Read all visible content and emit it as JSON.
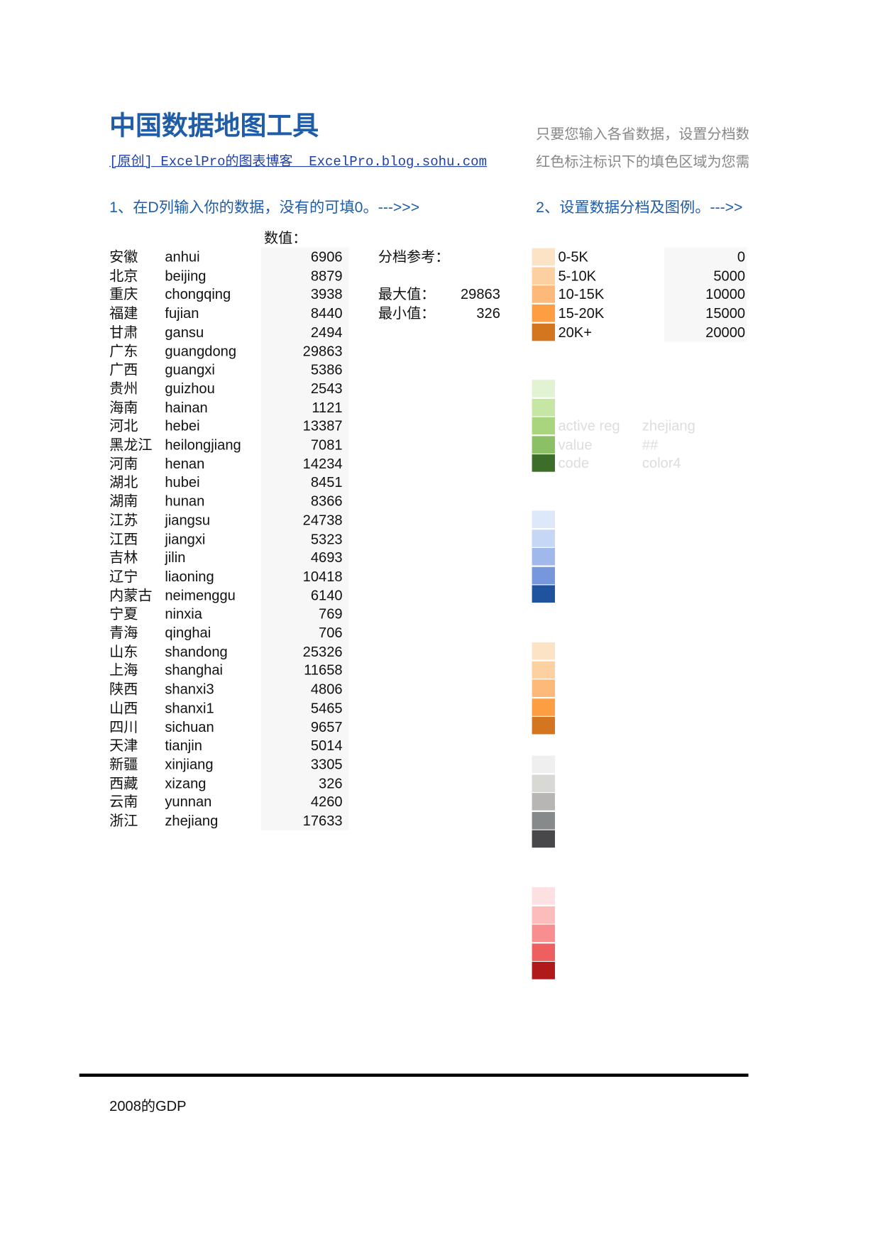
{
  "header": {
    "title": "中国数据地图工具",
    "link": "[原创] ExcelPro的图表博客  ExcelPro.blog.sohu.com",
    "notes": [
      "只要您输入各省数据，设置分档数",
      "红色标注标识下的填色区域为您需"
    ]
  },
  "steps": [
    "1、在D列输入你的数据，没有的可填0。--->>>",
    "2、设置数据分档及图例。--->>"
  ],
  "table": {
    "header": "数值：",
    "rows": [
      [
        "安徽",
        "anhui",
        6906
      ],
      [
        "北京",
        "beijing",
        8879
      ],
      [
        "重庆",
        "chongqing",
        3938
      ],
      [
        "福建",
        "fujian",
        8440
      ],
      [
        "甘肃",
        "gansu",
        2494
      ],
      [
        "广东",
        "guangdong",
        29863
      ],
      [
        "广西",
        "guangxi",
        5386
      ],
      [
        "贵州",
        "guizhou",
        2543
      ],
      [
        "海南",
        "hainan",
        1121
      ],
      [
        "河北",
        "hebei",
        13387
      ],
      [
        "黑龙江",
        "heilongjiang",
        7081
      ],
      [
        "河南",
        "henan",
        14234
      ],
      [
        "湖北",
        "hubei",
        8451
      ],
      [
        "湖南",
        "hunan",
        8366
      ],
      [
        "江苏",
        "jiangsu",
        24738
      ],
      [
        "江西",
        "jiangxi",
        5323
      ],
      [
        "吉林",
        "jilin",
        4693
      ],
      [
        "辽宁",
        "liaoning",
        10418
      ],
      [
        "内蒙古",
        "neimenggu",
        6140
      ],
      [
        "宁夏",
        "ninxia",
        769
      ],
      [
        "青海",
        "qinghai",
        706
      ],
      [
        "山东",
        "shandong",
        25326
      ],
      [
        "上海",
        "shanghai",
        11658
      ],
      [
        "陕西",
        "shanxi3",
        4806
      ],
      [
        "山西",
        "shanxi1",
        5465
      ],
      [
        "四川",
        "sichuan",
        9657
      ],
      [
        "天津",
        "tianjin",
        5014
      ],
      [
        "新疆",
        "xinjiang",
        3305
      ],
      [
        "西藏",
        "xizang",
        326
      ],
      [
        "云南",
        "yunnan",
        4260
      ],
      [
        "浙江",
        "zhejiang",
        17633
      ]
    ]
  },
  "reference": {
    "label": "分档参考：",
    "max_label": "最大值：",
    "max": 29863,
    "min_label": "最小值：",
    "min": 326
  },
  "legend": [
    {
      "color": "#fde3c6",
      "label": "0-5K",
      "threshold": 0
    },
    {
      "color": "#fdd0a2",
      "label": "5-10K",
      "threshold": 5000
    },
    {
      "color": "#fdb97a",
      "label": "10-15K",
      "threshold": 10000
    },
    {
      "color": "#fd9e43",
      "label": "15-20K",
      "threshold": 15000
    },
    {
      "color": "#d4761f",
      "label": "20K+",
      "threshold": 20000
    }
  ],
  "palettes": [
    [
      "#e2f3d3",
      "#c5e6a4",
      "#aad57f",
      "#8cc066",
      "#3c6e2a"
    ],
    [
      "#dde8f8",
      "#c5d7f4",
      "#a1b9ea",
      "#7697dc",
      "#1f539e"
    ],
    [
      "#fde3c6",
      "#fdd0a2",
      "#fdb97a",
      "#fd9e43",
      "#d4761f"
    ],
    [
      "#efefef",
      "#d8d8d5",
      "#b8b6b4",
      "#878a8b",
      "#48484a"
    ],
    [
      "#fde0e2",
      "#fbbcbc",
      "#f78e8f",
      "#ee5f5f",
      "#b11a1a"
    ]
  ],
  "hidden_cells": [
    [
      "active reg",
      "zhejiang"
    ],
    [
      "value",
      "##"
    ],
    [
      "code",
      "color4"
    ]
  ],
  "footer": "2008的GDP"
}
